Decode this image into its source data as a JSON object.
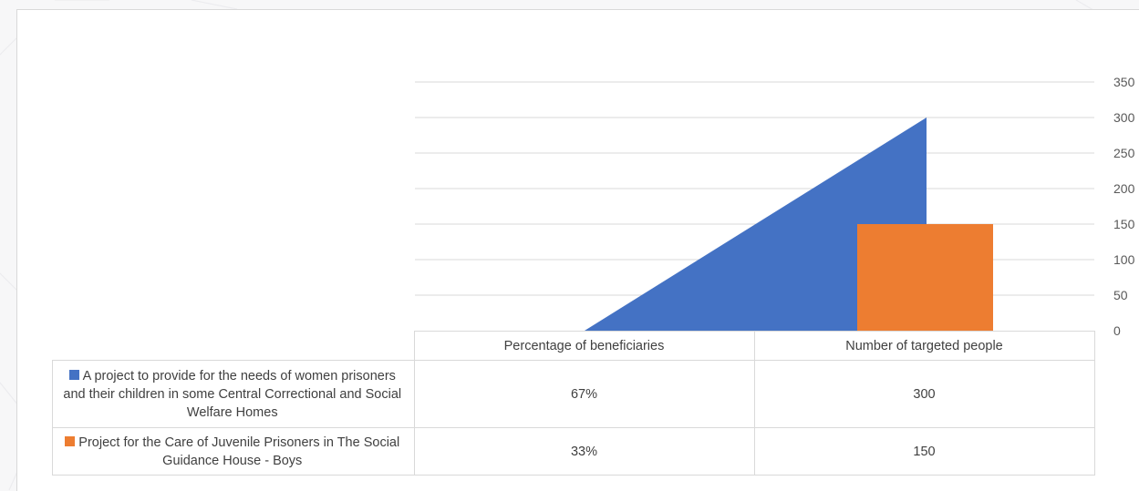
{
  "chart_data": {
    "type": "area",
    "categories": [
      "Percentage of beneficiaries",
      "Number of targeted people"
    ],
    "series": [
      {
        "name": "A project to provide for the needs of women prisoners and their children in some Central Correctional and Social Welfare Homes",
        "color": "#4472C4",
        "display": [
          "67%",
          "300"
        ],
        "values": [
          0.67,
          300
        ]
      },
      {
        "name": "Project for the Care of Juvenile Prisoners in The Social Guidance House - Boys",
        "color": "#ED7D31",
        "display": [
          "33%",
          "150"
        ],
        "values": [
          0.33,
          150
        ]
      }
    ],
    "yticks": [
      "0",
      "50",
      "100",
      "150",
      "200",
      "250",
      "300",
      "350"
    ],
    "ylim": [
      0,
      350
    ],
    "grid": true,
    "legend": "data-table",
    "title": "",
    "xlabel": "",
    "ylabel": ""
  }
}
